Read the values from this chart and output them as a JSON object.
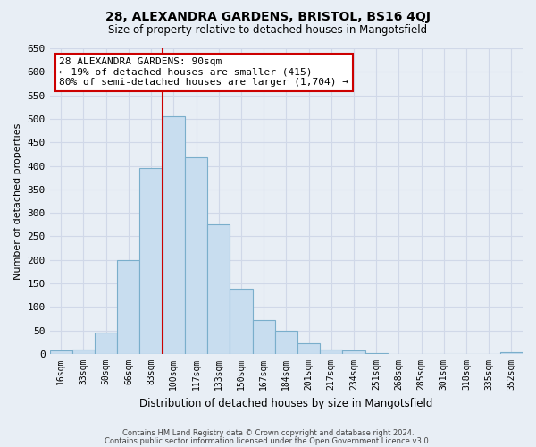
{
  "title1": "28, ALEXANDRA GARDENS, BRISTOL, BS16 4QJ",
  "title2": "Size of property relative to detached houses in Mangotsfield",
  "xlabel": "Distribution of detached houses by size in Mangotsfield",
  "ylabel": "Number of detached properties",
  "bar_labels": [
    "16sqm",
    "33sqm",
    "50sqm",
    "66sqm",
    "83sqm",
    "100sqm",
    "117sqm",
    "133sqm",
    "150sqm",
    "167sqm",
    "184sqm",
    "201sqm",
    "217sqm",
    "234sqm",
    "251sqm",
    "268sqm",
    "285sqm",
    "301sqm",
    "318sqm",
    "335sqm",
    "352sqm"
  ],
  "bar_values": [
    8,
    10,
    45,
    200,
    395,
    505,
    418,
    275,
    138,
    72,
    50,
    22,
    10,
    7,
    2,
    1,
    0,
    1,
    0,
    0,
    3
  ],
  "bar_color": "#c8ddef",
  "bar_edge_color": "#7aaecb",
  "property_label": "28 ALEXANDRA GARDENS: 90sqm",
  "pct_smaller": 19,
  "n_smaller": 415,
  "pct_larger_semi": 80,
  "n_larger_semi": 1704,
  "vline_x_index": 4.5,
  "annotation_box_color": "#ffffff",
  "annotation_border_color": "#cc0000",
  "vline_color": "#cc0000",
  "ylim": [
    0,
    650
  ],
  "yticks": [
    0,
    50,
    100,
    150,
    200,
    250,
    300,
    350,
    400,
    450,
    500,
    550,
    600,
    650
  ],
  "grid_color": "#d0d8e8",
  "plot_bg_color": "#e8eef5",
  "fig_bg_color": "#e8eef5",
  "footer1": "Contains HM Land Registry data © Crown copyright and database right 2024.",
  "footer2": "Contains public sector information licensed under the Open Government Licence v3.0."
}
